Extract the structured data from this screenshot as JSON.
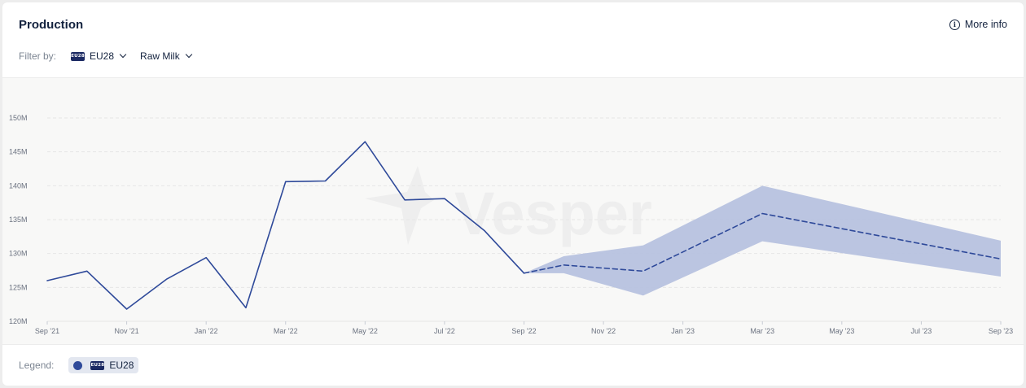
{
  "header": {
    "title": "Production",
    "more_info_label": "More info"
  },
  "filters": {
    "label": "Filter by:",
    "region": {
      "flag_text": "EU28",
      "value": "EU28"
    },
    "product": {
      "value": "Raw Milk"
    }
  },
  "watermark": "Vesper",
  "legend": {
    "label": "Legend:",
    "items": [
      {
        "flag_text": "EU28",
        "name": "EU28",
        "color": "#2f4a9a"
      }
    ]
  },
  "colors": {
    "line": "#2f4a9a",
    "band": "#b7c2df",
    "grid": "#e6e6e6"
  },
  "chart_data": {
    "type": "line",
    "y_unit": "M",
    "ylim": [
      120,
      150
    ],
    "yticks": [
      120,
      125,
      130,
      135,
      140,
      145,
      150
    ],
    "ytick_labels": [
      "120M",
      "125M",
      "130M",
      "135M",
      "140M",
      "145M",
      "150M"
    ],
    "xlim": [
      "Sep '21",
      "Sep '23"
    ],
    "xticks": [
      "Sep '21",
      "Nov '21",
      "Jan '22",
      "Mar '22",
      "May '22",
      "Jul '22",
      "Sep '22",
      "Nov '22",
      "Jan '23",
      "Mar '23",
      "May '23",
      "Jul '23",
      "Sep '23"
    ],
    "grid": true,
    "legend_position": "bottom-left",
    "series": [
      {
        "name": "EU28",
        "style": "solid",
        "x": [
          "Sep '21",
          "Oct '21",
          "Nov '21",
          "Dec '21",
          "Jan '22",
          "Feb '22",
          "Mar '22",
          "Apr '22",
          "May '22",
          "Jun '22",
          "Jul '22",
          "Aug '22",
          "Sep '22"
        ],
        "values": [
          126.0,
          127.4,
          121.8,
          126.2,
          129.4,
          122.0,
          140.6,
          140.7,
          146.5,
          137.9,
          138.1,
          133.4,
          127.1
        ]
      },
      {
        "name": "EU28",
        "style": "dashed",
        "x": [
          "Sep '22",
          "Oct '22",
          "Dec '22",
          "Mar '23",
          "Sep '23"
        ],
        "values": [
          127.1,
          128.3,
          127.4,
          135.9,
          129.2
        ],
        "band_upper": [
          127.1,
          129.6,
          131.2,
          140.0,
          131.9
        ],
        "band_lower": [
          127.1,
          127.1,
          123.8,
          131.8,
          126.6
        ]
      }
    ]
  }
}
